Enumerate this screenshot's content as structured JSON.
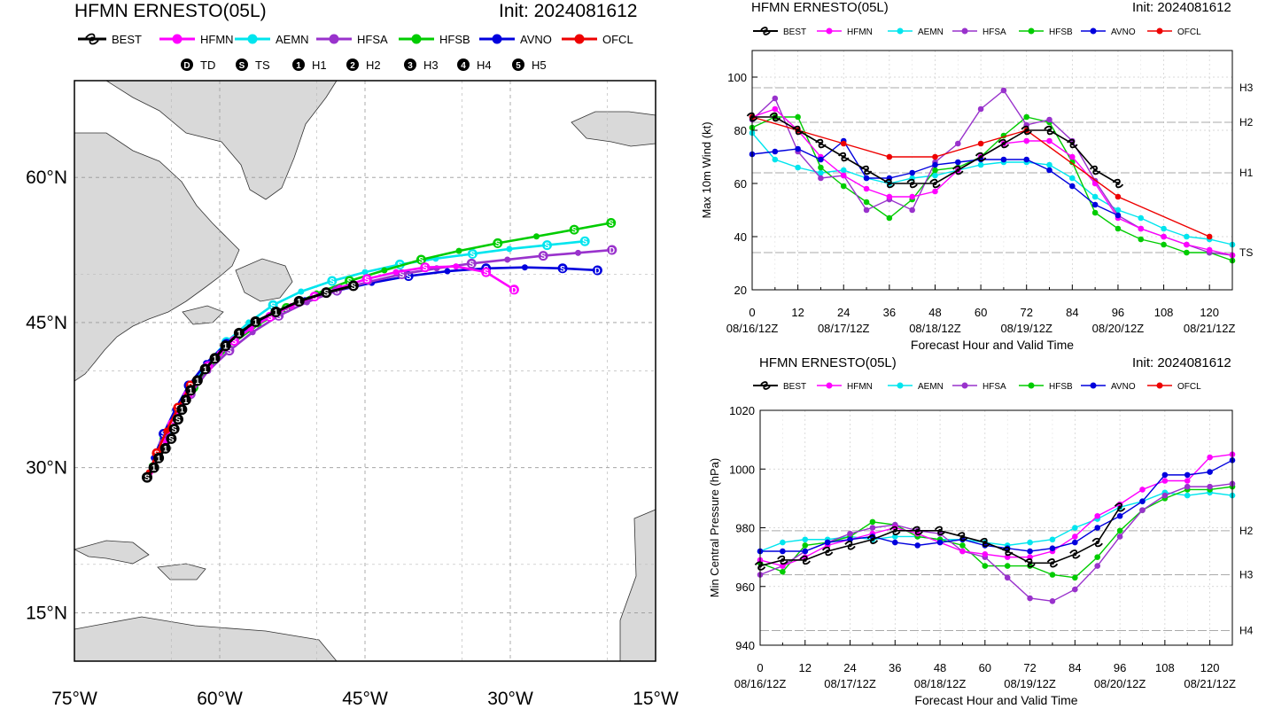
{
  "map": {
    "title": "HFMN ERNESTO(05L)",
    "init": "Init: 2024081612",
    "lon_labels": [
      "75°W",
      "60°W",
      "45°W",
      "30°W",
      "15°W"
    ],
    "lat_labels": [
      "60°N",
      "45°N",
      "30°N",
      "15°N"
    ],
    "intensity_legend": [
      {
        "symbol": "D",
        "label": "TD"
      },
      {
        "symbol": "S",
        "label": "TS"
      },
      {
        "symbol": "1",
        "label": "H1"
      },
      {
        "symbol": "2",
        "label": "H2"
      },
      {
        "symbol": "3",
        "label": "H3"
      },
      {
        "symbol": "4",
        "label": "H4"
      },
      {
        "symbol": "5",
        "label": "H5"
      }
    ],
    "extent": {
      "lon": [
        -75,
        -15
      ],
      "lat": [
        10,
        70
      ]
    },
    "land_color": "#d9d9d9",
    "ocean_color": "#ffffff"
  },
  "legend": [
    {
      "name": "BEST",
      "color": "#000000"
    },
    {
      "name": "HFMN",
      "color": "#ff00ff"
    },
    {
      "name": "AEMN",
      "color": "#00e5ee"
    },
    {
      "name": "HFSA",
      "color": "#9932cc"
    },
    {
      "name": "HFSB",
      "color": "#00cc00"
    },
    {
      "name": "AVNO",
      "color": "#0000dd"
    },
    {
      "name": "OFCL",
      "color": "#ee0000"
    }
  ],
  "wind_chart": {
    "title": "HFMN ERNESTO(05L)",
    "init": "Init: 2024081612",
    "ylabel": "Max 10m Wind (kt)",
    "xlabel": "Forecast Hour and Valid Time",
    "yticks": [
      "20",
      "40",
      "60",
      "80",
      "100"
    ],
    "xticks": [
      "0",
      "12",
      "24",
      "36",
      "48",
      "60",
      "72",
      "84",
      "96",
      "108",
      "120"
    ],
    "date_labels": [
      "08/16/12Z",
      "08/17/12Z",
      "08/18/12Z",
      "08/19/12Z",
      "08/20/12Z",
      "08/21/12Z"
    ],
    "threshold_labels": [
      "TS",
      "H1",
      "H2",
      "H3"
    ]
  },
  "pressure_chart": {
    "title": "HFMN ERNESTO(05L)",
    "init": "Init: 2024081612",
    "ylabel": "Min Central Pressure (hPa)",
    "xlabel": "Forecast Hour and Valid Time",
    "yticks": [
      "940",
      "960",
      "980",
      "1000",
      "1020"
    ],
    "xticks": [
      "0",
      "12",
      "24",
      "36",
      "48",
      "60",
      "72",
      "84",
      "96",
      "108",
      "120"
    ],
    "date_labels": [
      "08/16/12Z",
      "08/17/12Z",
      "08/18/12Z",
      "08/19/12Z",
      "08/20/12Z",
      "08/21/12Z"
    ],
    "threshold_labels": [
      "H2",
      "H3",
      "H4"
    ]
  },
  "chart_data": [
    {
      "type": "map",
      "name": "track",
      "series": [
        {
          "name": "BEST",
          "lon": [
            -67.5,
            -66.8,
            -66.3,
            -65.6,
            -65.0,
            -64.7,
            -64.3,
            -63.9,
            -63.5,
            -63.0,
            -62.3,
            -61.5,
            -60.5,
            -59.4,
            -58.0,
            -56.3,
            -54.2,
            -51.8,
            -49.0,
            -46.2
          ],
          "lat": [
            29.0,
            30.0,
            31.0,
            32.0,
            33.0,
            34.0,
            35.0,
            36.0,
            37.0,
            38.0,
            39.0,
            40.2,
            41.3,
            42.6,
            43.9,
            45.1,
            46.1,
            47.2,
            48.1,
            48.8
          ]
        },
        {
          "name": "HFMN",
          "lon": [
            -67.2,
            -66.3,
            -65.6,
            -64.9,
            -64.2,
            -63.3,
            -62.3,
            -61.2,
            -60.0,
            -58.5,
            -56.8,
            -54.8,
            -52.6,
            -50.2,
            -47.6,
            -44.8,
            -41.8,
            -38.8,
            -35.6,
            -32.5,
            -29.6
          ],
          "lat": [
            29.5,
            31.0,
            32.8,
            34.5,
            36.0,
            37.5,
            39.0,
            40.5,
            41.8,
            43.1,
            44.4,
            45.6,
            46.7,
            47.7,
            48.6,
            49.5,
            50.2,
            50.7,
            50.8,
            50.2,
            48.4
          ]
        },
        {
          "name": "AEMN",
          "lon": [
            -66.5,
            -65.5,
            -64.4,
            -63.0,
            -61.3,
            -59.3,
            -57.0,
            -54.5,
            -51.6,
            -48.4,
            -45.0,
            -41.4,
            -37.7,
            -33.9,
            -30.1,
            -26.2,
            -22.3
          ],
          "lat": [
            31.0,
            33.5,
            36.0,
            38.5,
            40.8,
            43.0,
            45.0,
            46.8,
            48.2,
            49.3,
            50.2,
            51.0,
            51.6,
            52.1,
            52.6,
            53.0,
            53.4
          ]
        },
        {
          "name": "HFSA",
          "lon": [
            -67.0,
            -65.8,
            -64.5,
            -63.0,
            -61.2,
            -59.0,
            -56.6,
            -53.9,
            -51.0,
            -47.9,
            -44.6,
            -41.2,
            -37.6,
            -34.0,
            -30.3,
            -26.6,
            -23.0,
            -19.5
          ],
          "lat": [
            30.0,
            32.5,
            35.0,
            37.6,
            40.0,
            42.1,
            44.0,
            45.7,
            47.1,
            48.3,
            49.2,
            50.0,
            50.6,
            51.1,
            51.5,
            51.9,
            52.2,
            52.5
          ]
        },
        {
          "name": "HFSB",
          "lon": [
            -67.0,
            -65.7,
            -64.3,
            -62.7,
            -60.8,
            -58.6,
            -56.0,
            -53.1,
            -50.0,
            -46.6,
            -43.0,
            -39.2,
            -35.3,
            -31.3,
            -27.3,
            -23.4,
            -19.6
          ],
          "lat": [
            30.2,
            33.0,
            35.7,
            38.3,
            40.7,
            42.9,
            44.8,
            46.5,
            48.0,
            49.3,
            50.4,
            51.5,
            52.4,
            53.2,
            53.9,
            54.6,
            55.3
          ]
        },
        {
          "name": "AVNO",
          "lon": [
            -66.8,
            -65.8,
            -64.6,
            -63.2,
            -61.4,
            -59.3,
            -56.9,
            -54.2,
            -51.2,
            -47.9,
            -44.3,
            -40.5,
            -36.5,
            -32.5,
            -28.5,
            -24.6,
            -21.0
          ],
          "lat": [
            31.0,
            33.5,
            36.0,
            38.5,
            40.8,
            42.8,
            44.5,
            46.0,
            47.3,
            48.3,
            49.1,
            49.8,
            50.3,
            50.6,
            50.7,
            50.6,
            50.4
          ]
        },
        {
          "name": "OFCL",
          "lon": [
            -67.3,
            -66.5,
            -65.5,
            -64.3,
            -63.0
          ],
          "lat": [
            29.5,
            31.5,
            33.8,
            36.2,
            38.5
          ]
        }
      ]
    },
    {
      "type": "line",
      "name": "max_wind",
      "title": "HFMN ERNESTO(05L)",
      "xlabel": "Forecast Hour and Valid Time",
      "ylabel": "Max 10m Wind (kt)",
      "xlim": [
        0,
        126
      ],
      "ylim": [
        20,
        110
      ],
      "thresholds": [
        {
          "label": "TS",
          "value": 34
        },
        {
          "label": "H1",
          "value": 64
        },
        {
          "label": "H2",
          "value": 83
        },
        {
          "label": "H3",
          "value": 96
        }
      ],
      "series": [
        {
          "name": "BEST",
          "x": [
            0,
            6,
            12,
            18,
            24,
            30,
            36,
            42,
            48,
            54,
            60,
            66,
            72,
            78,
            84,
            90,
            96
          ],
          "y": [
            85,
            85,
            80,
            75,
            70,
            65,
            60,
            60,
            60,
            65,
            70,
            75,
            80,
            80,
            75,
            65,
            60
          ]
        },
        {
          "name": "HFMN",
          "x": [
            0,
            6,
            12,
            18,
            24,
            30,
            36,
            42,
            48,
            54,
            60,
            66,
            72,
            78,
            84,
            90,
            96,
            102,
            108,
            114,
            120,
            126
          ],
          "y": [
            85,
            88,
            80,
            70,
            63,
            58,
            55,
            55,
            57,
            65,
            70,
            75,
            76,
            76,
            70,
            60,
            47,
            43,
            40,
            37,
            35,
            33
          ]
        },
        {
          "name": "AEMN",
          "x": [
            0,
            6,
            12,
            18,
            24,
            30,
            36,
            42,
            48,
            54,
            60,
            66,
            72,
            78,
            84,
            90,
            96,
            102,
            108,
            114,
            120,
            126
          ],
          "y": [
            79,
            69,
            66,
            64,
            65,
            62,
            60,
            62,
            63,
            65,
            67,
            68,
            68,
            67,
            62,
            55,
            50,
            47,
            43,
            40,
            39,
            37
          ]
        },
        {
          "name": "HFSA",
          "x": [
            0,
            6,
            12,
            18,
            24,
            30,
            36,
            42,
            48,
            54,
            60,
            66,
            72,
            78,
            84,
            90,
            96,
            102,
            108,
            114,
            120,
            126
          ],
          "y": [
            84,
            92,
            72,
            62,
            63,
            50,
            54,
            50,
            68,
            75,
            88,
            95,
            82,
            84,
            76,
            61,
            48,
            43,
            40,
            37,
            34,
            33
          ]
        },
        {
          "name": "HFSB",
          "x": [
            0,
            6,
            12,
            18,
            24,
            30,
            36,
            42,
            48,
            54,
            60,
            66,
            72,
            78,
            84,
            90,
            96,
            102,
            108,
            114,
            120,
            126
          ],
          "y": [
            81,
            85,
            85,
            66,
            59,
            53,
            47,
            54,
            65,
            66,
            70,
            78,
            85,
            83,
            68,
            49,
            43,
            39,
            37,
            34,
            34,
            31
          ]
        },
        {
          "name": "AVNO",
          "x": [
            0,
            6,
            12,
            18,
            24,
            30,
            36,
            42,
            48,
            54,
            60,
            66,
            72,
            78,
            84,
            90,
            96
          ],
          "y": [
            71,
            72,
            73,
            69,
            76,
            62,
            62,
            64,
            67,
            68,
            69,
            69,
            69,
            65,
            59,
            52,
            48
          ]
        },
        {
          "name": "OFCL",
          "x": [
            0,
            12,
            24,
            36,
            48,
            60,
            72,
            96,
            120
          ],
          "y": [
            85,
            80,
            75,
            70,
            70,
            75,
            80,
            55,
            40
          ]
        }
      ]
    },
    {
      "type": "line",
      "name": "min_pressure",
      "title": "HFMN ERNESTO(05L)",
      "xlabel": "Forecast Hour and Valid Time",
      "ylabel": "Min Central Pressure (hPa)",
      "xlim": [
        0,
        126
      ],
      "ylim": [
        940,
        1020
      ],
      "thresholds": [
        {
          "label": "H2",
          "value": 979
        },
        {
          "label": "H3",
          "value": 964
        },
        {
          "label": "H4",
          "value": 945
        }
      ],
      "series": [
        {
          "name": "BEST",
          "x": [
            0,
            6,
            12,
            18,
            24,
            30,
            36,
            42,
            48,
            54,
            60,
            66,
            72,
            78,
            84,
            90,
            96
          ],
          "y": [
            967,
            969,
            969,
            972,
            974,
            976,
            979,
            979,
            979,
            977,
            975,
            972,
            968,
            968,
            971,
            975,
            987
          ]
        },
        {
          "name": "HFMN",
          "x": [
            0,
            6,
            12,
            18,
            24,
            30,
            36,
            42,
            48,
            54,
            60,
            66,
            72,
            78,
            84,
            90,
            96,
            102,
            108,
            114,
            120,
            126
          ],
          "y": [
            969,
            967,
            970,
            974,
            976,
            978,
            980,
            978,
            975,
            972,
            971,
            970,
            970,
            972,
            977,
            984,
            988,
            993,
            996,
            996,
            1004,
            1005
          ]
        },
        {
          "name": "AEMN",
          "x": [
            0,
            6,
            12,
            18,
            24,
            30,
            36,
            42,
            48,
            54,
            60,
            66,
            72,
            78,
            84,
            90,
            96,
            102,
            108,
            114,
            120,
            126
          ],
          "y": [
            972,
            975,
            976,
            976,
            977,
            976,
            977,
            977,
            976,
            976,
            975,
            974,
            975,
            976,
            980,
            983,
            987,
            989,
            992,
            991,
            992,
            991
          ]
        },
        {
          "name": "HFSA",
          "x": [
            0,
            6,
            12,
            18,
            24,
            30,
            36,
            42,
            48,
            54,
            60,
            66,
            72,
            78,
            84,
            90,
            96,
            102,
            108,
            114,
            120,
            126
          ],
          "y": [
            964,
            967,
            972,
            975,
            978,
            980,
            981,
            979,
            978,
            972,
            970,
            963,
            956,
            955,
            959,
            967,
            977,
            986,
            991,
            994,
            994,
            995
          ]
        },
        {
          "name": "HFSB",
          "x": [
            0,
            6,
            12,
            18,
            24,
            30,
            36,
            42,
            48,
            54,
            60,
            66,
            72,
            78,
            84,
            90,
            96,
            102,
            108,
            114,
            120,
            126
          ],
          "y": [
            968,
            965,
            974,
            975,
            977,
            982,
            981,
            977,
            976,
            974,
            967,
            967,
            967,
            964,
            963,
            970,
            979,
            986,
            990,
            993,
            993,
            994
          ]
        },
        {
          "name": "AVNO",
          "x": [
            0,
            6,
            12,
            18,
            24,
            30,
            36,
            42,
            48,
            54,
            60,
            66,
            72,
            78,
            84,
            90,
            96,
            102,
            108,
            114,
            120,
            126
          ],
          "y": [
            972,
            972,
            972,
            975,
            976,
            977,
            975,
            974,
            975,
            976,
            974,
            973,
            972,
            973,
            975,
            980,
            984,
            989,
            998,
            998,
            999,
            1003
          ]
        },
        {
          "name": "OFCL",
          "x": [],
          "y": []
        }
      ]
    }
  ]
}
